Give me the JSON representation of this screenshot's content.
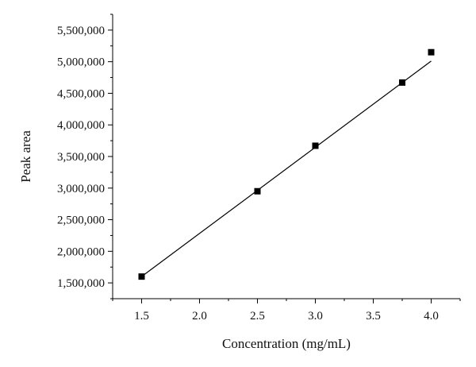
{
  "chart_data": {
    "type": "scatter",
    "title": "",
    "xlabel": "Concentration (mg/mL)",
    "ylabel": "Peak area",
    "xlim": [
      1.25,
      4.25
    ],
    "ylim": [
      1250000,
      5750000
    ],
    "x_ticks": [
      1.5,
      2.0,
      2.5,
      3.0,
      3.5,
      4.0
    ],
    "x_tick_labels": [
      "1.5",
      "2.0",
      "2.5",
      "3.0",
      "3.5",
      "4.0"
    ],
    "y_ticks": [
      1500000,
      2000000,
      2500000,
      3000000,
      3500000,
      4000000,
      4500000,
      5000000,
      5500000
    ],
    "y_tick_labels": [
      "1,500,000",
      "2,000,000",
      "2,500,000",
      "3,000,000",
      "3,500,000",
      "4,000,000",
      "4,500,000",
      "5,000,000",
      "5,500,000"
    ],
    "grid": false,
    "legend": "none",
    "series": [
      {
        "kind": "points",
        "marker": "square",
        "color": "#000000",
        "points": [
          {
            "x": 1.5,
            "y": 1600000
          },
          {
            "x": 2.5,
            "y": 2950000
          },
          {
            "x": 3.0,
            "y": 3670000
          },
          {
            "x": 3.75,
            "y": 4670000
          },
          {
            "x": 4.0,
            "y": 5150000
          }
        ]
      },
      {
        "kind": "fit-line",
        "color": "#000000",
        "points": [
          {
            "x": 1.5,
            "y": 1600000
          },
          {
            "x": 4.0,
            "y": 5010000
          }
        ]
      }
    ]
  }
}
